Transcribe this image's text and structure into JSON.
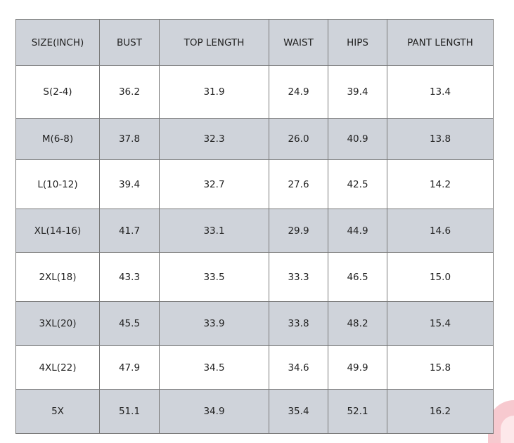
{
  "size_chart": {
    "headers": [
      "SIZE(INCH)",
      "BUST",
      "TOP LENGTH",
      "WAIST",
      "HIPS",
      "PANT LENGTH"
    ],
    "rows": [
      [
        "S(2-4)",
        "36.2",
        "31.9",
        "24.9",
        "39.4",
        "13.4"
      ],
      [
        "M(6-8)",
        "37.8",
        "32.3",
        "26.0",
        "40.9",
        "13.8"
      ],
      [
        "L(10-12)",
        "39.4",
        "32.7",
        "27.6",
        "42.5",
        "14.2"
      ],
      [
        "XL(14-16)",
        "41.7",
        "33.1",
        "29.9",
        "44.9",
        "14.6"
      ],
      [
        "2XL(18)",
        "43.3",
        "33.5",
        "33.3",
        "46.5",
        "15.0"
      ],
      [
        "3XL(20)",
        "45.5",
        "33.9",
        "33.8",
        "48.2",
        "15.4"
      ],
      [
        "4XL(22)",
        "47.9",
        "34.5",
        "34.6",
        "49.9",
        "15.8"
      ],
      [
        "5X",
        "51.1",
        "34.9",
        "35.4",
        "52.1",
        "16.2"
      ]
    ],
    "colors": {
      "header_bg": "#cfd3da",
      "stripe_bg": "#cfd3da",
      "border": "#7a7a7a"
    }
  }
}
